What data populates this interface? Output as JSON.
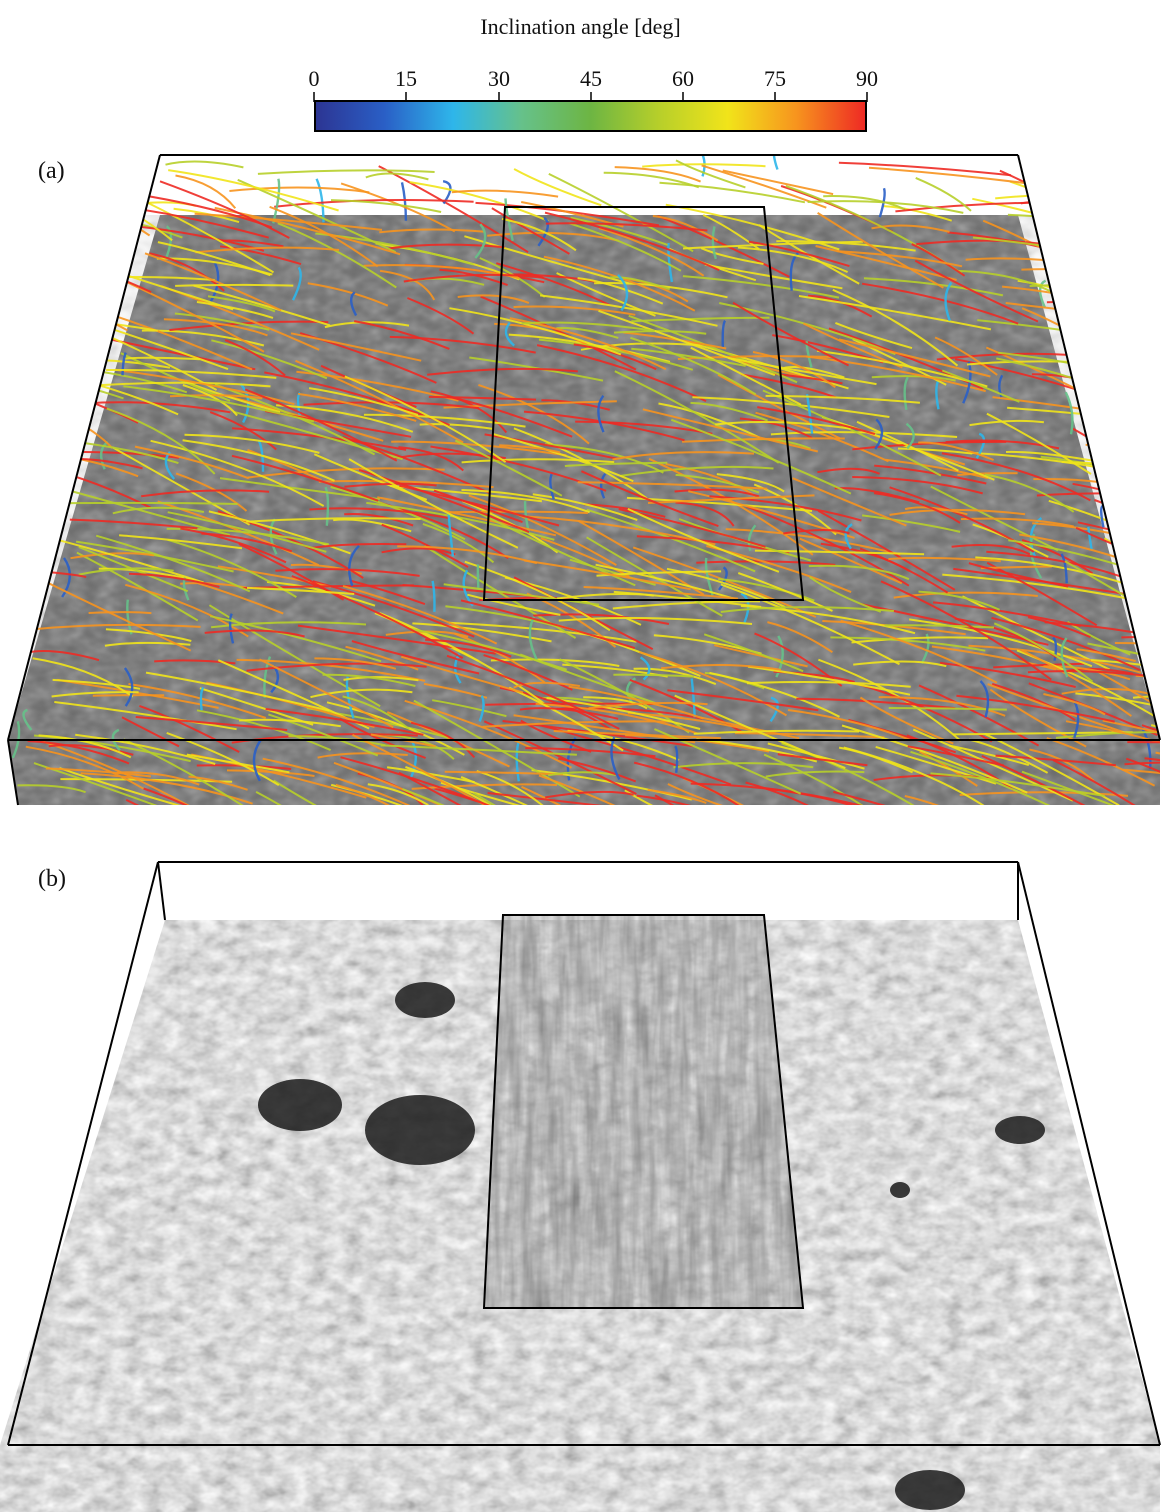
{
  "colorbar": {
    "title": "Inclination angle [deg]",
    "ticks": [
      "0",
      "15",
      "30",
      "45",
      "60",
      "75",
      "90"
    ],
    "colormap": [
      "#2c3593",
      "#2a5fc6",
      "#2eb6ea",
      "#66c18a",
      "#6db543",
      "#b7cf2a",
      "#f1e41a",
      "#f7941e",
      "#ee2a24"
    ]
  },
  "panels": [
    {
      "label": "(a)",
      "content": "magnetic field lines colored by inclination angle over photosphere"
    },
    {
      "label": "(b)",
      "content": "photospheric granulation with chromospheric fibril inset"
    }
  ]
}
